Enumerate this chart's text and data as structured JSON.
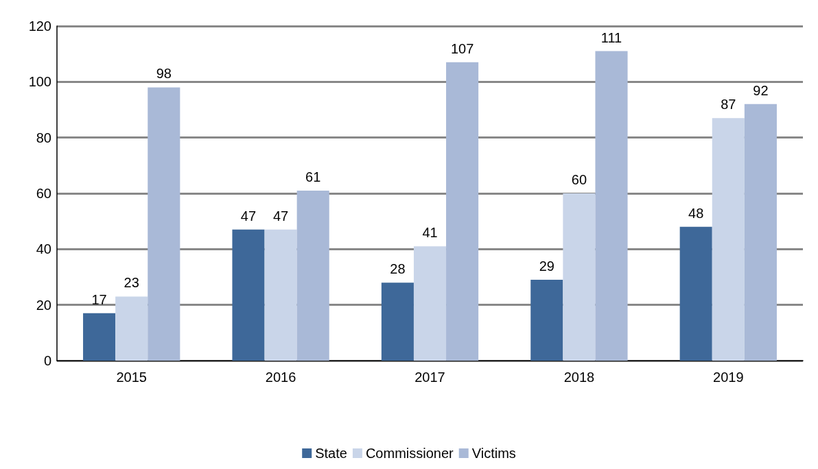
{
  "chart_data": {
    "type": "bar",
    "categories": [
      "2015",
      "2016",
      "2017",
      "2018",
      "2019"
    ],
    "series": [
      {
        "name": "State",
        "color": "#3e6899",
        "values": [
          17,
          47,
          28,
          29,
          48
        ]
      },
      {
        "name": "Commissioner",
        "color": "#c9d5e9",
        "values": [
          23,
          47,
          41,
          60,
          87
        ]
      },
      {
        "name": "Victims",
        "color": "#a9b9d7",
        "values": [
          98,
          61,
          107,
          111,
          92
        ]
      }
    ],
    "ylim": [
      0,
      120
    ],
    "yticks": [
      0,
      20,
      40,
      60,
      80,
      100,
      120
    ],
    "grid": "y",
    "legend": "bottom",
    "data_labels": true
  }
}
